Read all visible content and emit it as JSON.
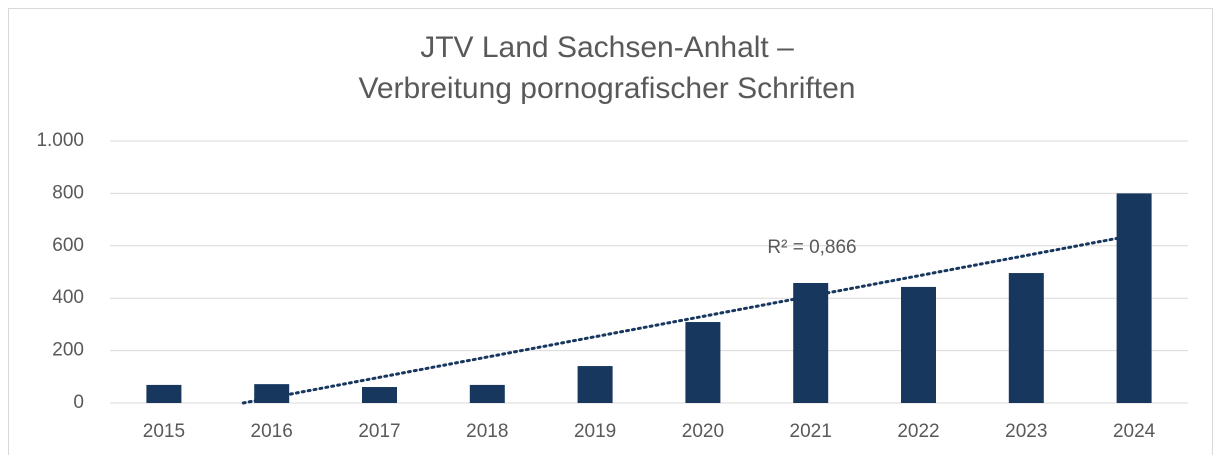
{
  "chart_data": {
    "type": "bar",
    "title": [
      "JTV Land Sachsen-Anhalt –",
      "Verbreitung pornografischer Schriften"
    ],
    "categories": [
      "2015",
      "2016",
      "2017",
      "2018",
      "2019",
      "2020",
      "2021",
      "2022",
      "2023",
      "2024"
    ],
    "values": [
      69,
      72,
      61,
      69,
      141,
      309,
      458,
      443,
      496,
      800
    ],
    "color": "#17375e",
    "ylim": [
      0,
      1000
    ],
    "yticks": [
      0,
      200,
      400,
      600,
      800,
      {
        "value": 1000,
        "label": "1.000"
      }
    ],
    "grid": true,
    "trendline": {
      "type": "linear",
      "color": "#17375e",
      "annotation": "R² = 0,866"
    }
  }
}
